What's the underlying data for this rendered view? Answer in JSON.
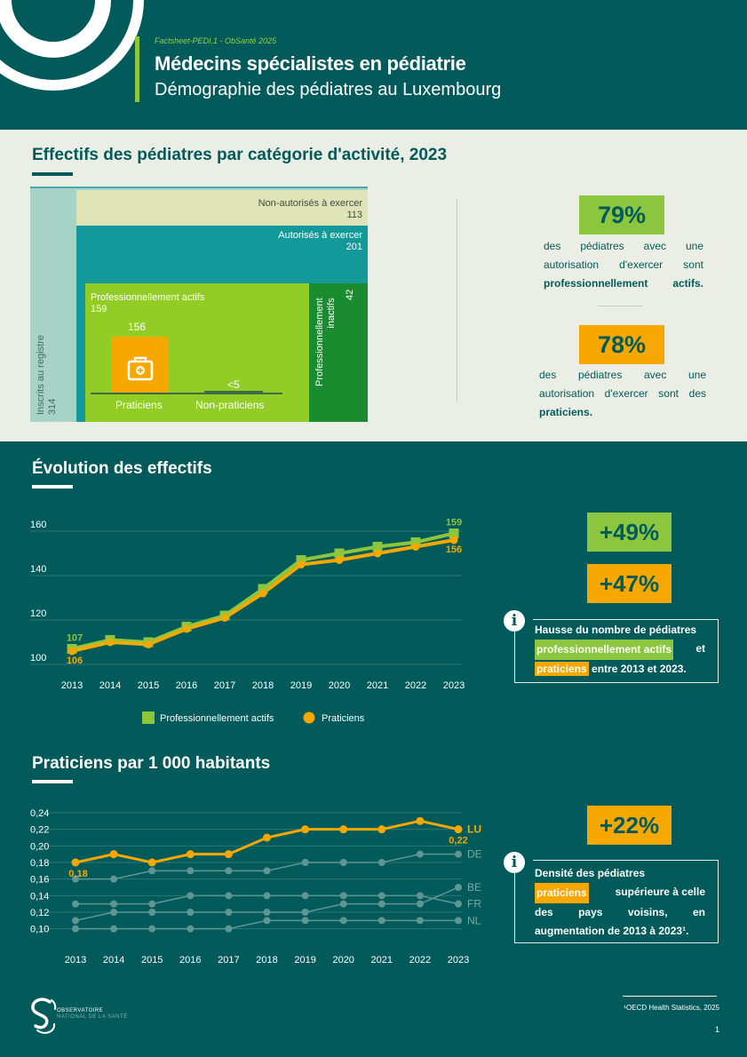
{
  "header": {
    "kicker": "Factsheet-PEDI.1 - ObSanté 2025",
    "title": "Médecins spécialistes en pédiatrie",
    "subtitle": "Démographie des pédiatres au Luxembourg"
  },
  "section1": {
    "title": "Effectifs des pédiatres par catégorie d'activité, 2023",
    "tree": {
      "registered_label": "Inscrits au registre",
      "registered_value": "314",
      "not_authorized_label": "Non-autorisés à exercer",
      "not_authorized_value": "113",
      "authorized_label": "Autorisés à exercer",
      "authorized_value": "201",
      "active_label": "Professionnellement actifs",
      "active_value": "159",
      "inactive_label_1": "Professionnellement",
      "inactive_label_2": "inactifs",
      "inactive_value": "42",
      "practitioners_value": "156",
      "practitioners_label": "Praticiens",
      "non_practitioners_value": "<5",
      "non_practitioners_label": "Non-praticiens"
    },
    "stats": [
      {
        "value": "79%",
        "text_pre": "des pédiatres avec une autorisation d'exercer sont",
        "text_bold": "professionnellement actifs."
      },
      {
        "value": "78%",
        "text_pre": "des pédiatres avec une autorisation d'exercer sont des",
        "text_bold": "praticiens."
      }
    ],
    "colors": {
      "active": "#92cd26",
      "inactive": "#1a8b2e",
      "authorized": "#14999a",
      "not_authorized": "#dfe3b8",
      "registered": "#a7d2c6",
      "practitioners": "#f7a800"
    }
  },
  "section2": {
    "title": "Évolution des effectifs",
    "kpis": [
      {
        "value": "+49%",
        "color": "#8cc63f"
      },
      {
        "value": "+47%",
        "color": "#f7a800"
      }
    ],
    "info": {
      "line1": "Hausse du nombre de pédiatres",
      "hl_green": "professionnellement actifs",
      "joiner": "et",
      "hl_orange": "praticiens",
      "line3": "entre 2013 et 2023."
    }
  },
  "section3": {
    "title": "Praticiens par 1 000 habitants",
    "kpi": {
      "value": "+22%",
      "color": "#f7a800"
    },
    "info": {
      "line1": "Densité des pédiatres",
      "hl_orange": "praticiens",
      "line2_rest": "supérieure à celle",
      "line3": "des pays voisins, en",
      "line4": "augmentation de 2013 à 2023¹."
    }
  },
  "chart_data": [
    {
      "type": "line",
      "title": "",
      "x": [
        2013,
        2014,
        2015,
        2016,
        2017,
        2018,
        2019,
        2020,
        2021,
        2022,
        2023
      ],
      "ylim": [
        100,
        160
      ],
      "yticks": [
        100,
        120,
        140,
        160
      ],
      "grid": true,
      "legend": "bottom",
      "series": [
        {
          "name": "Professionnellement actifs",
          "color": "#8cc63f",
          "marker": "square",
          "values": [
            107,
            111,
            110,
            117,
            122,
            134,
            147,
            150,
            153,
            155,
            159
          ]
        },
        {
          "name": "Praticiens",
          "color": "#f7a800",
          "marker": "circle",
          "values": [
            106,
            110,
            109,
            116,
            121,
            132,
            145,
            147,
            150,
            153,
            156
          ]
        }
      ],
      "labels": [
        {
          "series": 0,
          "index": 0,
          "text": "107"
        },
        {
          "series": 1,
          "index": 0,
          "text": "106"
        },
        {
          "series": 0,
          "index": 10,
          "text": "159"
        },
        {
          "series": 1,
          "index": 10,
          "text": "156"
        }
      ]
    },
    {
      "type": "line",
      "title": "",
      "x": [
        2013,
        2014,
        2015,
        2016,
        2017,
        2018,
        2019,
        2020,
        2021,
        2022,
        2023
      ],
      "ylim": [
        0.09,
        0.24
      ],
      "yticks": [
        "0,10",
        "0,12",
        "0,14",
        "0,16",
        "0,18",
        "0,20",
        "0,22",
        "0,24"
      ],
      "grid": true,
      "series": [
        {
          "name": "LU",
          "color": "#f7a800",
          "values": [
            0.18,
            0.19,
            0.18,
            0.19,
            0.19,
            0.21,
            0.22,
            0.22,
            0.22,
            0.23,
            0.22
          ]
        },
        {
          "name": "DE",
          "color": "#5f9692",
          "values": [
            0.16,
            0.16,
            0.17,
            0.17,
            0.17,
            0.17,
            0.18,
            0.18,
            0.18,
            0.19,
            0.19
          ]
        },
        {
          "name": "BE",
          "color": "#5f9692",
          "values": [
            0.11,
            0.12,
            0.12,
            0.12,
            0.12,
            0.12,
            0.12,
            0.13,
            0.13,
            0.13,
            0.15
          ]
        },
        {
          "name": "FR",
          "color": "#5f9692",
          "values": [
            0.13,
            0.13,
            0.13,
            0.14,
            0.14,
            0.14,
            0.14,
            0.14,
            0.14,
            0.14,
            0.13
          ]
        },
        {
          "name": "NL",
          "color": "#5f9692",
          "values": [
            0.1,
            0.1,
            0.1,
            0.1,
            0.1,
            0.11,
            0.11,
            0.11,
            0.11,
            0.11,
            0.11
          ]
        }
      ],
      "labels": [
        {
          "series": 0,
          "index": 0,
          "text": "0,18"
        },
        {
          "series": 0,
          "index": 10,
          "text": "0,22"
        }
      ]
    }
  ],
  "footer": {
    "logo_line1": "OBSERVATOIRE",
    "logo_line2": "NATIONAL DE LA SANTÉ",
    "footnote": "¹OECD Health Statistics, 2025",
    "page": "1"
  }
}
